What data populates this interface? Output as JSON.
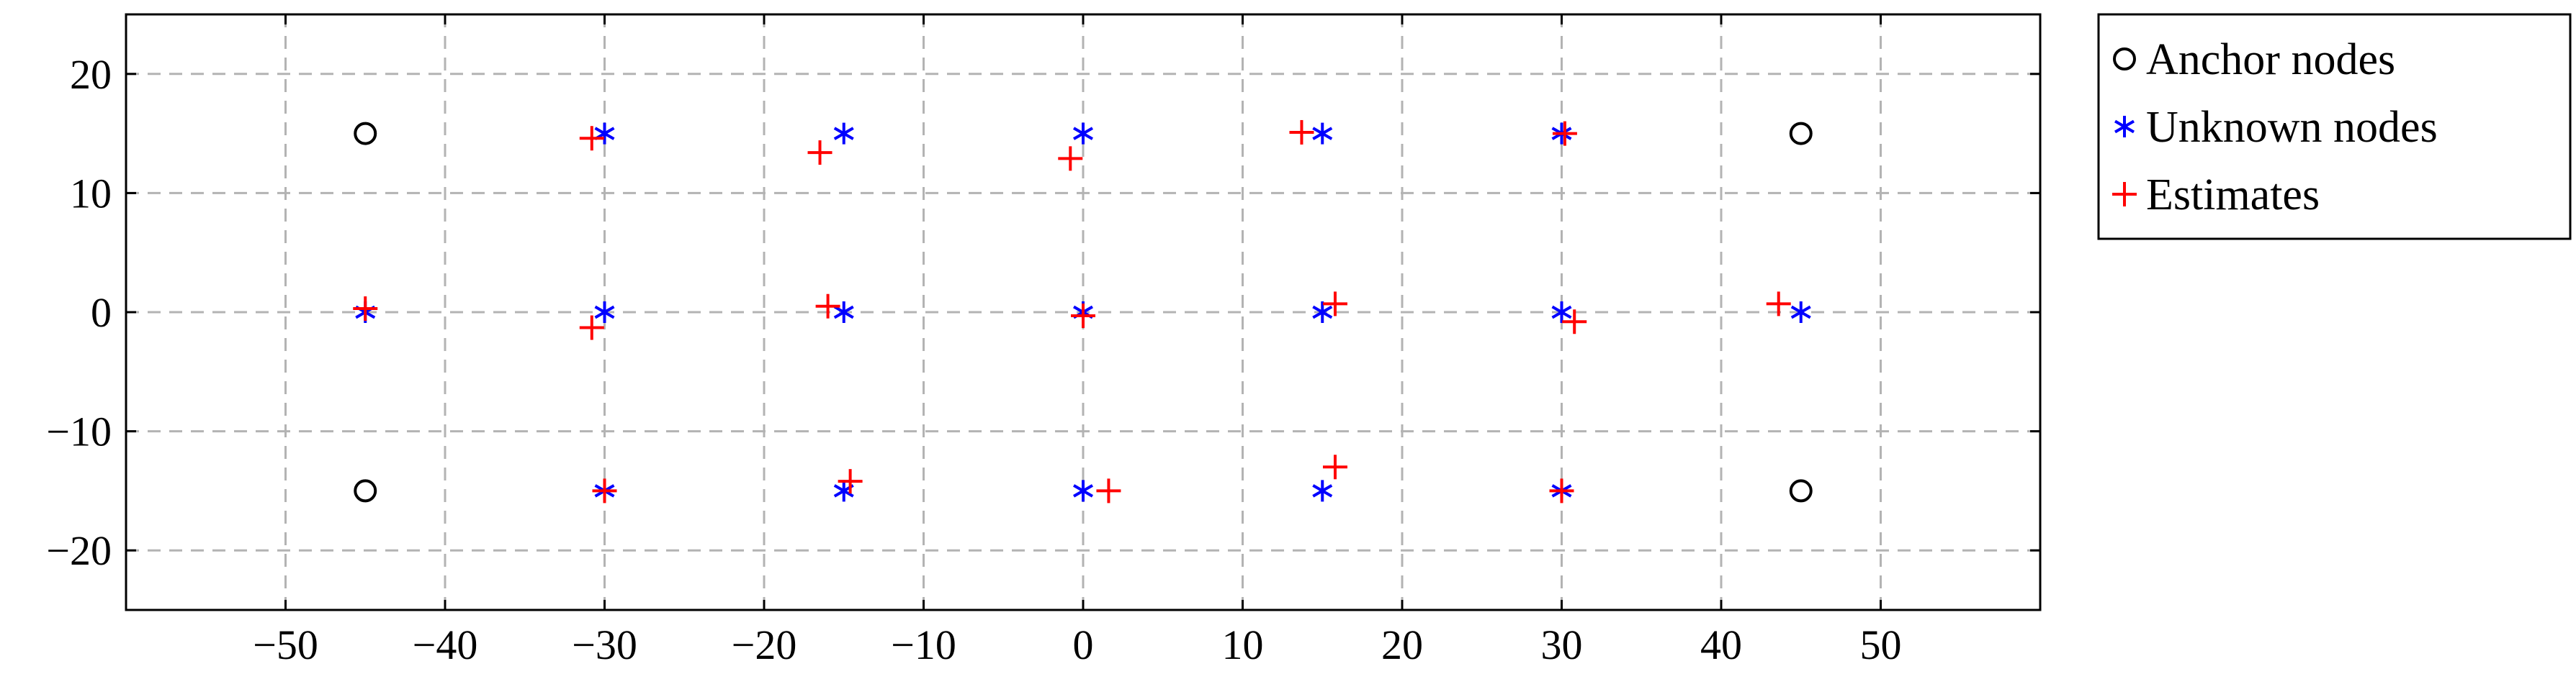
{
  "chart_data": {
    "type": "scatter",
    "title": "",
    "xlabel": "",
    "ylabel": "",
    "xlim": [
      -60,
      60
    ],
    "ylim": [
      -25,
      25
    ],
    "xticks": [
      -50,
      -40,
      -30,
      -20,
      -10,
      0,
      10,
      20,
      30,
      40,
      50
    ],
    "yticks": [
      -20,
      -10,
      0,
      10,
      20
    ],
    "xtick_labels": [
      "−50",
      "−40",
      "−30",
      "−20",
      "−10",
      "0",
      "10",
      "20",
      "30",
      "40",
      "50"
    ],
    "ytick_labels": [
      "−20",
      "−10",
      "0",
      "10",
      "20"
    ],
    "grid": true,
    "legend_position": "outside-right-top",
    "series": [
      {
        "name": "Anchor nodes",
        "marker": "circle",
        "color": "#000000",
        "points": [
          [
            -45,
            15
          ],
          [
            45,
            15
          ],
          [
            -45,
            -15
          ],
          [
            45,
            -15
          ]
        ]
      },
      {
        "name": "Unknown nodes",
        "marker": "asterisk",
        "color": "#0000ff",
        "points": [
          [
            -30,
            15
          ],
          [
            -15,
            15
          ],
          [
            0,
            15
          ],
          [
            15,
            15
          ],
          [
            30,
            15
          ],
          [
            -45,
            0
          ],
          [
            -30,
            0
          ],
          [
            -15,
            0
          ],
          [
            0,
            0
          ],
          [
            15,
            0
          ],
          [
            30,
            0
          ],
          [
            45,
            0
          ],
          [
            -30,
            -15
          ],
          [
            -15,
            -15
          ],
          [
            0,
            -15
          ],
          [
            15,
            -15
          ],
          [
            30,
            -15
          ]
        ]
      },
      {
        "name": "Estimates",
        "marker": "plus",
        "color": "#ff0000",
        "points": [
          [
            -30.8,
            14.6
          ],
          [
            -16.5,
            13.4
          ],
          [
            -0.8,
            12.9
          ],
          [
            13.7,
            15.1
          ],
          [
            30.2,
            15
          ],
          [
            -45,
            0.3
          ],
          [
            -30.8,
            -1.3
          ],
          [
            -16,
            0.5
          ],
          [
            0,
            -0.3
          ],
          [
            15.8,
            0.7
          ],
          [
            30.8,
            -0.8
          ],
          [
            43.6,
            0.7
          ],
          [
            -30,
            -15
          ],
          [
            -14.6,
            -14.2
          ],
          [
            1.6,
            -15
          ],
          [
            15.8,
            -13
          ],
          [
            30,
            -15
          ]
        ]
      }
    ]
  }
}
